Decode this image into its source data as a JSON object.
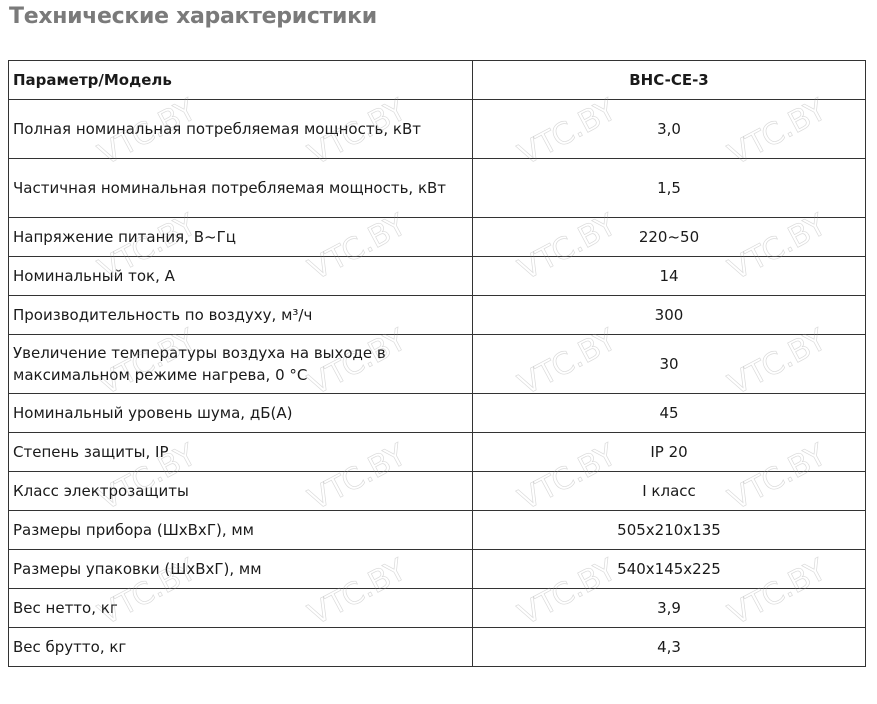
{
  "title": "Технические характеристики",
  "watermark": "VTC.BY",
  "table": {
    "header": {
      "param": "Параметр/Модель",
      "model": "BHC-CE-3"
    },
    "rows": [
      {
        "param": "Полная номинальная потребляемая мощность, кВт",
        "value": "3,0",
        "tall": true
      },
      {
        "param": "Частичная номинальная потребляемая мощность, кВт",
        "value": "1,5",
        "tall": true
      },
      {
        "param": "Напряжение питания, В~Гц",
        "value": "220~50"
      },
      {
        "param": "Номинальный ток, А",
        "value": "14"
      },
      {
        "param": "Производительность по воздуху, м³/ч",
        "value": "300"
      },
      {
        "param": "Увеличение температуры воздуха на выходе в максимальном режиме нагрева, 0 °С",
        "value": "30",
        "tall": true
      },
      {
        "param": "Номинальный уровень шума, дБ(А)",
        "value": "45"
      },
      {
        "param": "Степень защиты, IP",
        "value": "IP 20"
      },
      {
        "param": "Класс электрозащиты",
        "value": "I класс"
      },
      {
        "param": "Размеры прибора (ШхВхГ), мм",
        "value": "505x210x135"
      },
      {
        "param": "Размеры упаковки (ШхВхГ), мм",
        "value": "540x145x225"
      },
      {
        "param": "Вес нетто, кг",
        "value": "3,9"
      },
      {
        "param": "Вес брутто, кг",
        "value": "4,3"
      }
    ]
  }
}
